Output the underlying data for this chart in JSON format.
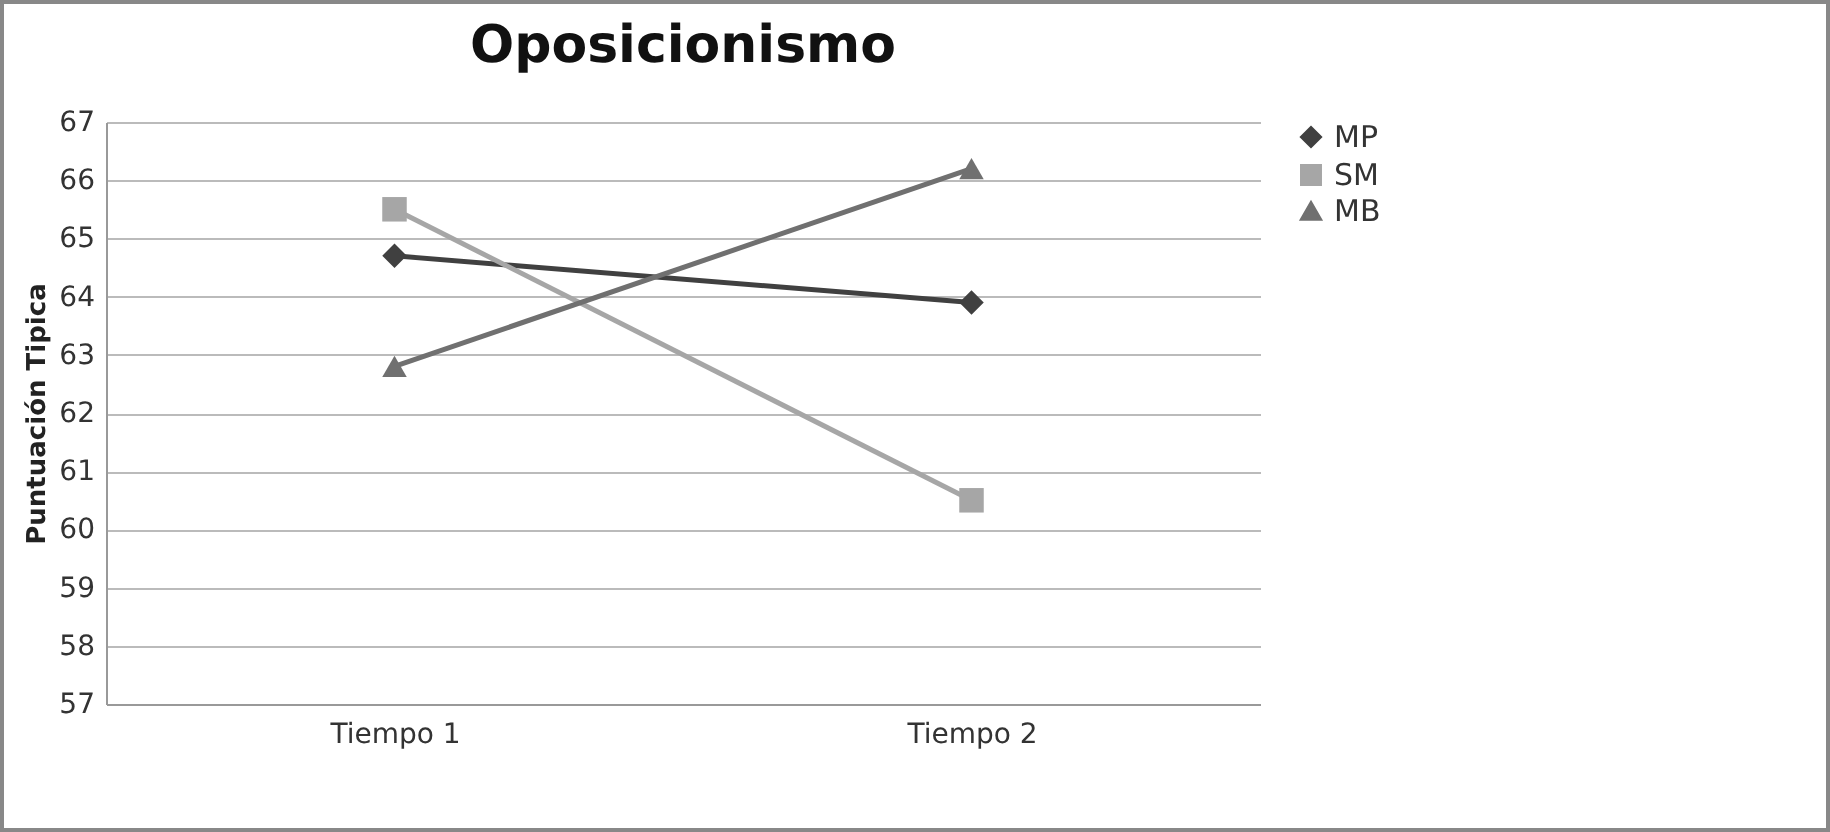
{
  "chart_data": {
    "type": "line",
    "title": "Oposicionismo",
    "ylabel": "Puntuación Tipica",
    "categories": [
      "Tiempo 1",
      "Tiempo 2"
    ],
    "series": [
      {
        "name": "MP",
        "color": "#404040",
        "marker": "diamond",
        "values": [
          64.7,
          63.9
        ]
      },
      {
        "name": "SM",
        "color": "#a6a6a6",
        "marker": "square",
        "values": [
          65.5,
          60.5
        ]
      },
      {
        "name": "MB",
        "color": "#707070",
        "marker": "triangle",
        "values": [
          62.8,
          66.2
        ]
      }
    ],
    "ylim": [
      57,
      67
    ],
    "yticks": [
      57,
      58,
      59,
      60,
      61,
      62,
      63,
      64,
      65,
      66,
      67
    ],
    "grid": "y",
    "legend": "right"
  }
}
